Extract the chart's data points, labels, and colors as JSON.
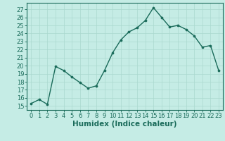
{
  "x": [
    0,
    1,
    2,
    3,
    4,
    5,
    6,
    7,
    8,
    9,
    10,
    11,
    12,
    13,
    14,
    15,
    16,
    17,
    18,
    19,
    20,
    21,
    22,
    23
  ],
  "y": [
    15.3,
    15.8,
    15.2,
    19.9,
    19.4,
    18.6,
    17.9,
    17.2,
    17.5,
    19.4,
    21.6,
    23.2,
    24.2,
    24.7,
    25.6,
    27.2,
    26.0,
    24.8,
    25.0,
    24.5,
    23.7,
    22.3,
    22.5,
    19.4
  ],
  "xlabel": "Humidex (Indice chaleur)",
  "ylabel_ticks": [
    15,
    16,
    17,
    18,
    19,
    20,
    21,
    22,
    23,
    24,
    25,
    26,
    27
  ],
  "ylim": [
    14.5,
    27.8
  ],
  "xlim": [
    -0.5,
    23.5
  ],
  "line_color": "#1a6b5a",
  "marker_color": "#1a6b5a",
  "bg_color": "#c5ece5",
  "grid_color": "#aad8cf",
  "tick_label_color": "#1a6b5a",
  "xlabel_color": "#1a6b5a",
  "xlabel_fontsize": 7.5,
  "tick_fontsize": 6.0
}
